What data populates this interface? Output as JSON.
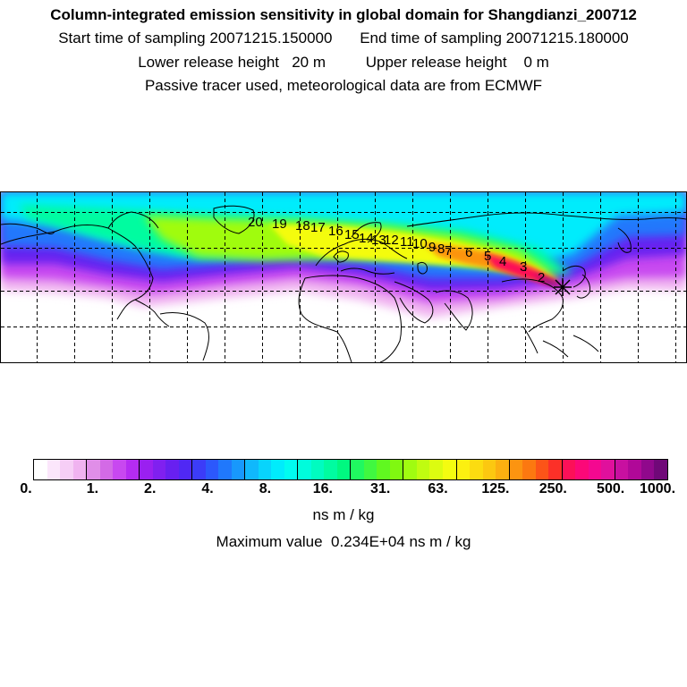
{
  "header": {
    "title": "Column-integrated emission sensitivity in global domain for Shangdianzi_200712",
    "start_label": "Start time of sampling",
    "start_value": "20071215.150000",
    "end_label": "End time of sampling",
    "end_value": "20071215.180000",
    "lower_label": "Lower release height",
    "lower_value": "20 m",
    "upper_label": "Upper release height",
    "upper_value": "0 m",
    "info": "Passive tracer used, meteorological data are from ECMWF"
  },
  "map": {
    "day_markers": [
      "20",
      "19",
      "18",
      "17",
      "16",
      "15",
      "14",
      "13",
      "12",
      "11",
      "10",
      "9",
      "8",
      "7",
      "6",
      "5",
      "4",
      "3",
      "2"
    ],
    "station_icon": "star-marker-icon"
  },
  "colorbar": {
    "tick_labels": [
      "0.",
      "1.",
      "2.",
      "4.",
      "8.",
      "16.",
      "31.",
      "63.",
      "125.",
      "250.",
      "500.",
      "1000."
    ],
    "colors": [
      "#ffffff",
      "#fbe6fb",
      "#f6cef6",
      "#f0b3f0",
      "#e08ee8",
      "#d36ae6",
      "#c848f0",
      "#b52cf2",
      "#9a20f0",
      "#8020f0",
      "#6820f0",
      "#5028f4",
      "#3c3cf8",
      "#2c58fc",
      "#2078fc",
      "#1898fc",
      "#10b8fc",
      "#08d4fc",
      "#00ecfc",
      "#00fcf0",
      "#00fcdc",
      "#00fcc0",
      "#00fca0",
      "#00f880",
      "#20f860",
      "#40f840",
      "#60f820",
      "#80f810",
      "#a0fc10",
      "#c0fc10",
      "#dcfc10",
      "#f4fc10",
      "#fcf010",
      "#fcdc10",
      "#fcc810",
      "#fcb010",
      "#fc9410",
      "#fc7810",
      "#fc5418",
      "#fc3028",
      "#fc1058",
      "#fc0878",
      "#f40890",
      "#e0109c",
      "#c810a0",
      "#b00898",
      "#90088c",
      "#700878"
    ],
    "units": "ns m / kg",
    "max_label": "Maximum value",
    "max_value": "0.234E+04 ns m / kg"
  }
}
